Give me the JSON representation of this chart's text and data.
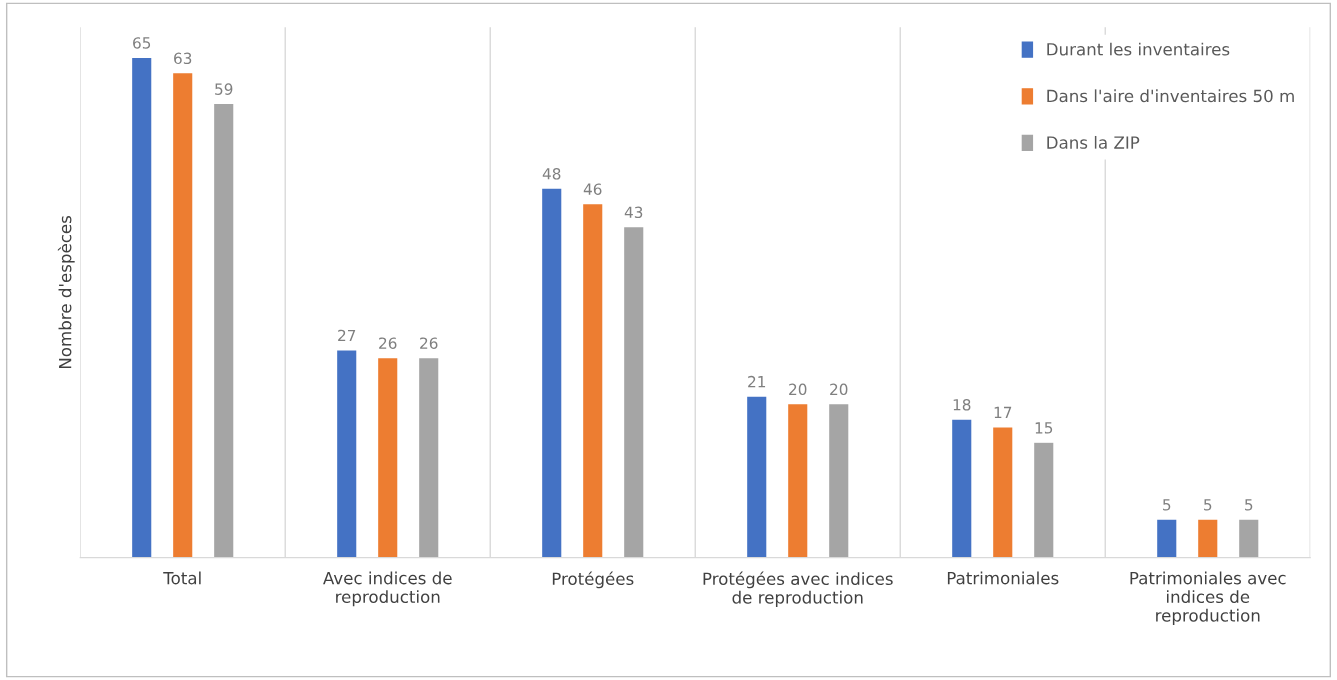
{
  "chart_data": {
    "type": "bar",
    "ylabel": "Nombre d'espèces",
    "categories": [
      "Total",
      "Avec indices de reproduction",
      "Protégées",
      "Protégées avec indices de reproduction",
      "Patrimoniales",
      "Patrimoniales avec indices de reproduction"
    ],
    "series": [
      {
        "name": "Durant les inventaires",
        "color": "#4472c4",
        "values": [
          65,
          27,
          48,
          21,
          18,
          5
        ]
      },
      {
        "name": "Dans l'aire d'inventaires 50 m",
        "color": "#ed7d31",
        "values": [
          63,
          26,
          46,
          20,
          17,
          5
        ]
      },
      {
        "name": "Dans la ZIP",
        "color": "#a5a5a5",
        "values": [
          59,
          26,
          43,
          20,
          15,
          5
        ]
      }
    ],
    "data_labels": true,
    "grid": "x",
    "legend": "top right"
  }
}
